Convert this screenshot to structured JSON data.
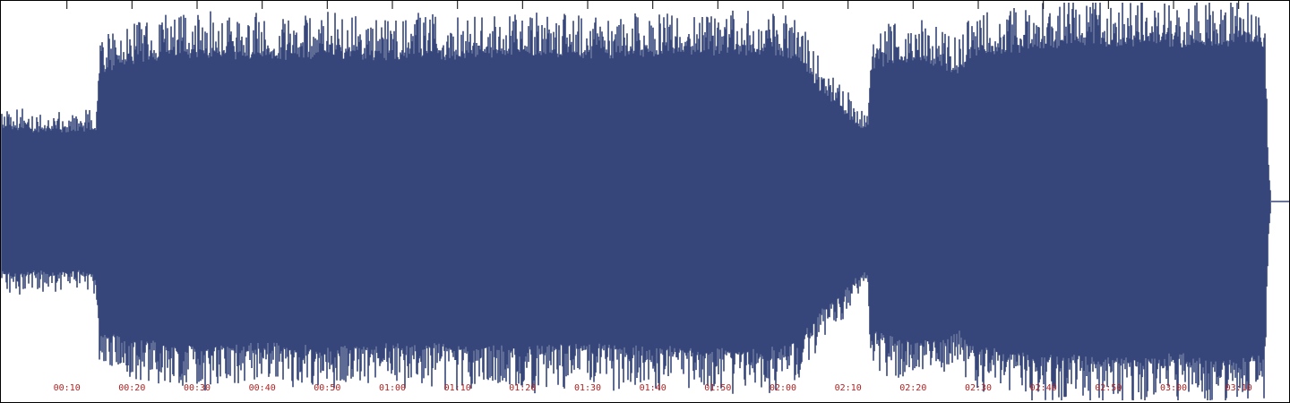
{
  "chart_data": {
    "type": "area",
    "subtype": "audio-waveform",
    "colors": {
      "waveform": "#36467a",
      "axis_line": "#000000",
      "tick_label": "#b22222",
      "background": "#ffffff",
      "frame": "#000000"
    },
    "duration_seconds": 195,
    "x_unit": "seconds",
    "ylim": [
      -1,
      1
    ],
    "grid": false,
    "tick_labels": [
      "00:10",
      "00:20",
      "00:30",
      "00:40",
      "00:50",
      "01:00",
      "01:10",
      "01:20",
      "01:30",
      "01:40",
      "01:50",
      "02:00",
      "02:10",
      "02:20",
      "02:30",
      "02:40",
      "02:50",
      "03:00",
      "03:10"
    ],
    "tick_seconds": [
      10,
      20,
      30,
      40,
      50,
      60,
      70,
      80,
      90,
      100,
      110,
      120,
      130,
      140,
      150,
      160,
      170,
      180,
      190
    ],
    "envelope": [
      {
        "t": 0.0,
        "amp": 0.36
      },
      {
        "t": 2.0,
        "amp": 0.38
      },
      {
        "t": 5.0,
        "amp": 0.36
      },
      {
        "t": 8.0,
        "amp": 0.37
      },
      {
        "t": 11.0,
        "amp": 0.36
      },
      {
        "t": 14.5,
        "amp": 0.37
      },
      {
        "t": 15.0,
        "amp": 0.67
      },
      {
        "t": 20.0,
        "amp": 0.72
      },
      {
        "t": 30.0,
        "amp": 0.76
      },
      {
        "t": 40.0,
        "amp": 0.74
      },
      {
        "t": 50.0,
        "amp": 0.76
      },
      {
        "t": 60.0,
        "amp": 0.74
      },
      {
        "t": 70.0,
        "amp": 0.75
      },
      {
        "t": 80.0,
        "amp": 0.76
      },
      {
        "t": 90.0,
        "amp": 0.75
      },
      {
        "t": 100.0,
        "amp": 0.76
      },
      {
        "t": 110.0,
        "amp": 0.77
      },
      {
        "t": 120.0,
        "amp": 0.76
      },
      {
        "t": 123.0,
        "amp": 0.7
      },
      {
        "t": 126.0,
        "amp": 0.56
      },
      {
        "t": 128.5,
        "amp": 0.5
      },
      {
        "t": 131.0,
        "amp": 0.4
      },
      {
        "t": 133.0,
        "amp": 0.35
      },
      {
        "t": 133.5,
        "amp": 0.68
      },
      {
        "t": 140.0,
        "amp": 0.74
      },
      {
        "t": 147.0,
        "amp": 0.66
      },
      {
        "t": 149.0,
        "amp": 0.76
      },
      {
        "t": 160.0,
        "amp": 0.8
      },
      {
        "t": 170.0,
        "amp": 0.82
      },
      {
        "t": 180.0,
        "amp": 0.8
      },
      {
        "t": 190.0,
        "amp": 0.82
      },
      {
        "t": 194.0,
        "amp": 0.8
      },
      {
        "t": 194.5,
        "amp": 0.2
      },
      {
        "t": 195.0,
        "amp": 0.0
      }
    ]
  }
}
